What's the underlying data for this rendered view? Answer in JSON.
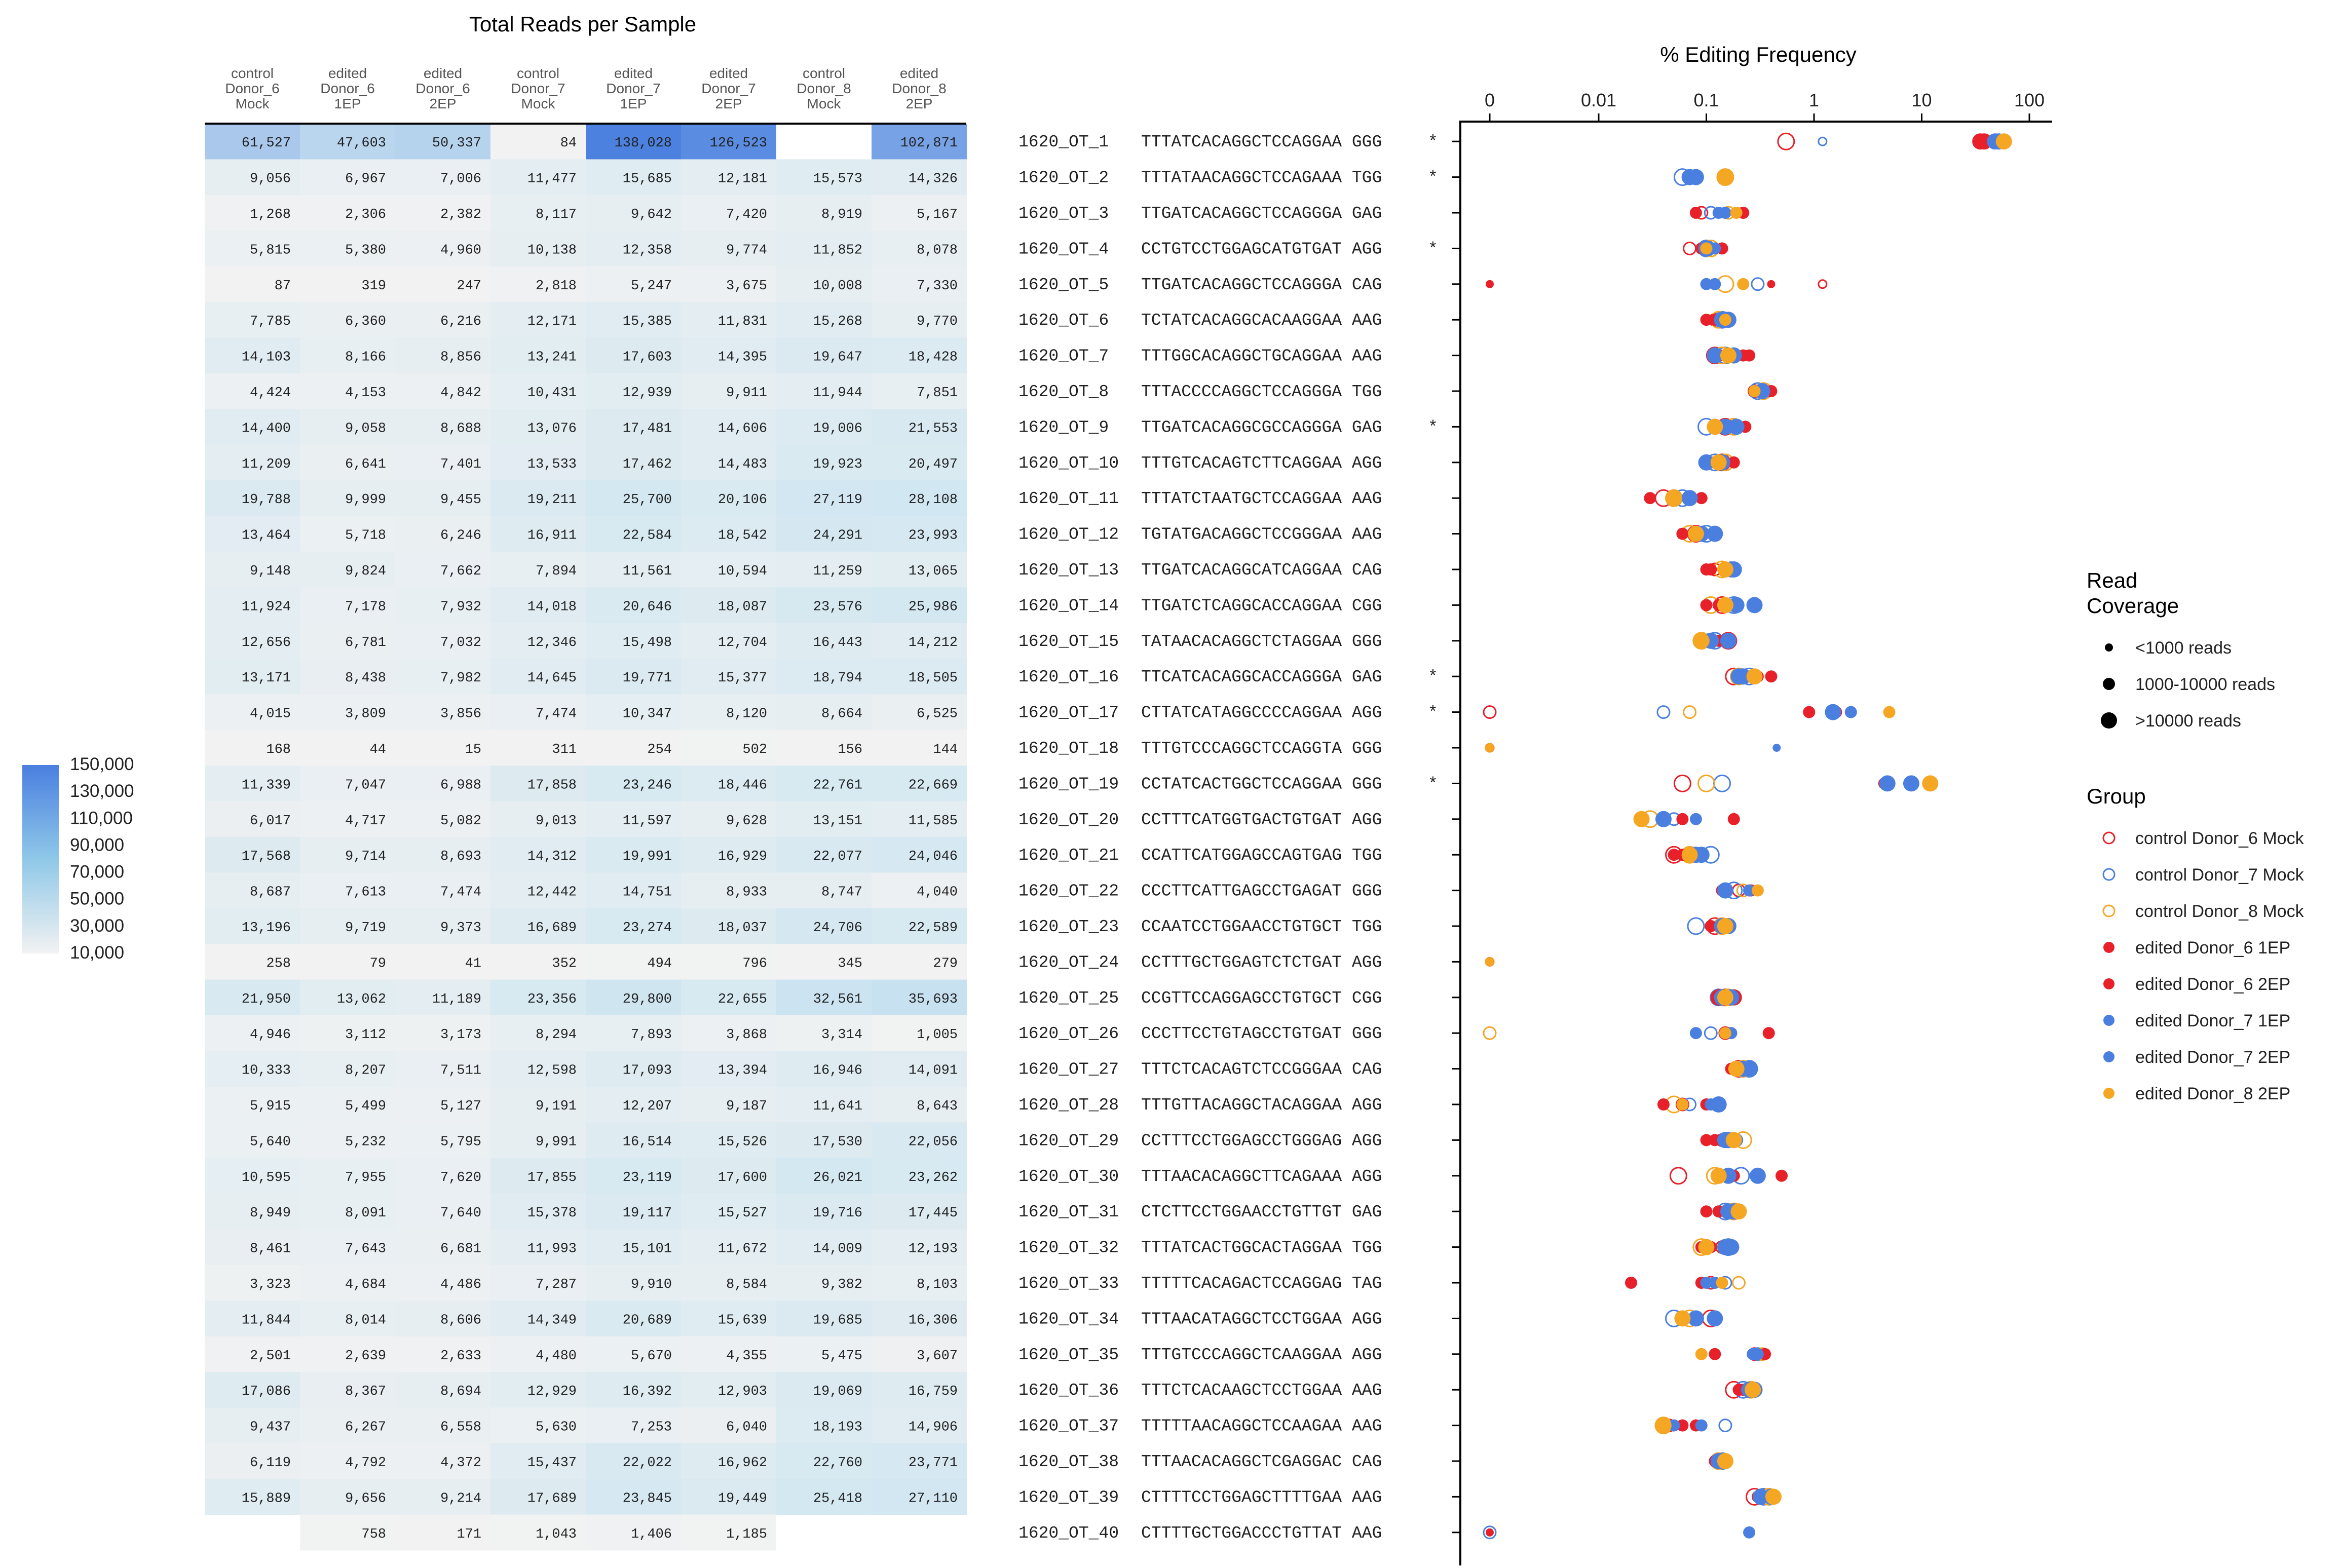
{
  "heatmap": {
    "title": "Total Reads per Sample",
    "columns": [
      [
        "control",
        "Donor_6",
        "Mock"
      ],
      [
        "edited",
        "Donor_6",
        "1EP"
      ],
      [
        "edited",
        "Donor_6",
        "2EP"
      ],
      [
        "control",
        "Donor_7",
        "Mock"
      ],
      [
        "edited",
        "Donor_7",
        "1EP"
      ],
      [
        "edited",
        "Donor_7",
        "2EP"
      ],
      [
        "control",
        "Donor_8",
        "Mock"
      ],
      [
        "edited",
        "Donor_8",
        "2EP"
      ]
    ],
    "colorbar_labels": [
      "150,000",
      "130,000",
      "110,000",
      "90,000",
      "70,000",
      "50,000",
      "30,000",
      "10,000"
    ],
    "colorbar_values": [
      150000,
      130000,
      110000,
      90000,
      70000,
      50000,
      30000,
      10000
    ],
    "colors": {
      "low": "#f2f2f2",
      "mid": "#cfe6f1",
      "high": "#4a7fe0"
    }
  },
  "chart_data": {
    "type": "scatter",
    "title": "% Editing Frequency",
    "x_scale": "log",
    "x_ticks": [
      "0",
      "0.01",
      "0.1",
      "1",
      "10",
      "100"
    ],
    "sites": [
      {
        "name": "1620_OT_1",
        "seq": "TTTATCACAGGCTCCAGGAA GGG",
        "star": "*"
      },
      {
        "name": "1620_OT_2",
        "seq": "TTTATAACAGGCTCCAGAAA TGG",
        "star": "*"
      },
      {
        "name": "1620_OT_3",
        "seq": "TTGATCACAGGCTCCAGGGA GAG",
        "star": ""
      },
      {
        "name": "1620_OT_4",
        "seq": "CCTGTCCTGGAGCATGTGAT AGG",
        "star": "*"
      },
      {
        "name": "1620_OT_5",
        "seq": "TTGATCACAGGCTCCAGGGA CAG",
        "star": ""
      },
      {
        "name": "1620_OT_6",
        "seq": "TCTATCACAGGCACAAGGAA AAG",
        "star": ""
      },
      {
        "name": "1620_OT_7",
        "seq": "TTTGGCACAGGCTGCAGGAA AAG",
        "star": ""
      },
      {
        "name": "1620_OT_8",
        "seq": "TTTACCCCAGGCTCCAGGGA TGG",
        "star": ""
      },
      {
        "name": "1620_OT_9",
        "seq": "TTGATCACAGGCGCCAGGGA GAG",
        "star": "*"
      },
      {
        "name": "1620_OT_10",
        "seq": "TTTGTCACAGTCTTCAGGAA AGG",
        "star": ""
      },
      {
        "name": "1620_OT_11",
        "seq": "TTTATCTAATGCTCCAGGAA AAG",
        "star": ""
      },
      {
        "name": "1620_OT_12",
        "seq": "TGTATGACAGGCTCCGGGAA AAG",
        "star": ""
      },
      {
        "name": "1620_OT_13",
        "seq": "TTGATCACAGGCATCAGGAA CAG",
        "star": ""
      },
      {
        "name": "1620_OT_14",
        "seq": "TTGATCTCAGGCACCAGGAA CGG",
        "star": ""
      },
      {
        "name": "1620_OT_15",
        "seq": "TATAACACAGGCTCTAGGAA GGG",
        "star": ""
      },
      {
        "name": "1620_OT_16",
        "seq": "TTCATCACAGGCACCAGGGA GAG",
        "star": "*"
      },
      {
        "name": "1620_OT_17",
        "seq": "CTTATCATAGGCCCCAGGAA AGG",
        "star": "*"
      },
      {
        "name": "1620_OT_18",
        "seq": "TTTGTCCCAGGCTCCAGGTA GGG",
        "star": ""
      },
      {
        "name": "1620_OT_19",
        "seq": "CCTATCACTGGCTCCAGGAA GGG",
        "star": "*"
      },
      {
        "name": "1620_OT_20",
        "seq": "CCTTTCATGGTGACTGTGAT AGG",
        "star": ""
      },
      {
        "name": "1620_OT_21",
        "seq": "CCATTCATGGAGCCAGTGAG TGG",
        "star": ""
      },
      {
        "name": "1620_OT_22",
        "seq": "CCCTTCATTGAGCCTGAGAT GGG",
        "star": ""
      },
      {
        "name": "1620_OT_23",
        "seq": "CCAATCCTGGAACCTGTGCT TGG",
        "star": ""
      },
      {
        "name": "1620_OT_24",
        "seq": "CCTTTGCTGGAGTCTCTGAT AGG",
        "star": ""
      },
      {
        "name": "1620_OT_25",
        "seq": "CCGTTCCAGGAGCCTGTGCT CGG",
        "star": ""
      },
      {
        "name": "1620_OT_26",
        "seq": "CCCTTCCTGTAGCCTGTGAT GGG",
        "star": ""
      },
      {
        "name": "1620_OT_27",
        "seq": "TTTCTCACAGTCTCCGGGAA CAG",
        "star": ""
      },
      {
        "name": "1620_OT_28",
        "seq": "TTTGTTACAGGCTACAGGAA AGG",
        "star": ""
      },
      {
        "name": "1620_OT_29",
        "seq": "CCTTTCCTGGAGCCTGGGAG AGG",
        "star": ""
      },
      {
        "name": "1620_OT_30",
        "seq": "TTTAACACAGGCTTCAGAAA AGG",
        "star": ""
      },
      {
        "name": "1620_OT_31",
        "seq": "CTCTTCCTGGAACCTGTTGT GAG",
        "star": ""
      },
      {
        "name": "1620_OT_32",
        "seq": "TTTATCACTGGCACTAGGAA TGG",
        "star": ""
      },
      {
        "name": "1620_OT_33",
        "seq": "TTTTTCACAGACTCCAGGAG TAG",
        "star": ""
      },
      {
        "name": "1620_OT_34",
        "seq": "TTTAACATAGGCTCCTGGAA AGG",
        "star": ""
      },
      {
        "name": "1620_OT_35",
        "seq": "TTTGTCCCAGGCTCAAGGAA AGG",
        "star": ""
      },
      {
        "name": "1620_OT_36",
        "seq": "TTTCTCACAAGCTCCTGGAA AAG",
        "star": ""
      },
      {
        "name": "1620_OT_37",
        "seq": "TTTTTAACAGGCTCCAAGAA AAG",
        "star": ""
      },
      {
        "name": "1620_OT_38",
        "seq": "TTTAACACAGGCTCGAGGAC CAG",
        "star": ""
      },
      {
        "name": "1620_OT_39",
        "seq": "CTTTTCCTGGAGCTTTTGAA AAG",
        "star": ""
      },
      {
        "name": "1620_OT_40",
        "seq": "CTTTTGCTGGACCCTGTTAT AAG",
        "star": ""
      }
    ],
    "reads": [
      [
        61527,
        47603,
        50337,
        84,
        138028,
        126523,
        null,
        102871
      ],
      [
        9056,
        6967,
        7006,
        11477,
        15685,
        12181,
        15573,
        14326
      ],
      [
        1268,
        2306,
        2382,
        8117,
        9642,
        7420,
        8919,
        5167
      ],
      [
        5815,
        5380,
        4960,
        10138,
        12358,
        9774,
        11852,
        8078
      ],
      [
        87,
        319,
        247,
        2818,
        5247,
        3675,
        10008,
        7330
      ],
      [
        7785,
        6360,
        6216,
        12171,
        15385,
        11831,
        15268,
        9770
      ],
      [
        14103,
        8166,
        8856,
        13241,
        17603,
        14395,
        19647,
        18428
      ],
      [
        4424,
        4153,
        4842,
        10431,
        12939,
        9911,
        11944,
        7851
      ],
      [
        14400,
        9058,
        8688,
        13076,
        17481,
        14606,
        19006,
        21553
      ],
      [
        11209,
        6641,
        7401,
        13533,
        17462,
        14483,
        19923,
        20497
      ],
      [
        19788,
        9999,
        9455,
        19211,
        25700,
        20106,
        27119,
        28108
      ],
      [
        13464,
        5718,
        6246,
        16911,
        22584,
        18542,
        24291,
        23993
      ],
      [
        9148,
        9824,
        7662,
        7894,
        11561,
        10594,
        11259,
        13065
      ],
      [
        11924,
        7178,
        7932,
        14018,
        20646,
        18087,
        23576,
        25986
      ],
      [
        12656,
        6781,
        7032,
        12346,
        15498,
        12704,
        16443,
        14212
      ],
      [
        13171,
        8438,
        7982,
        14645,
        19771,
        15377,
        18794,
        18505
      ],
      [
        4015,
        3809,
        3856,
        7474,
        10347,
        8120,
        8664,
        6525
      ],
      [
        168,
        44,
        15,
        311,
        254,
        502,
        156,
        144
      ],
      [
        11339,
        7047,
        6988,
        17858,
        23246,
        18446,
        22761,
        22669
      ],
      [
        6017,
        4717,
        5082,
        9013,
        11597,
        9628,
        13151,
        11585
      ],
      [
        17568,
        9714,
        8693,
        14312,
        19991,
        16929,
        22077,
        24046
      ],
      [
        8687,
        7613,
        7474,
        12442,
        14751,
        8933,
        8747,
        4040
      ],
      [
        13196,
        9719,
        9373,
        16689,
        23274,
        18037,
        24706,
        22589
      ],
      [
        258,
        79,
        41,
        352,
        494,
        796,
        345,
        279
      ],
      [
        21950,
        13062,
        11189,
        23356,
        29800,
        22655,
        32561,
        35693
      ],
      [
        4946,
        3112,
        3173,
        8294,
        7893,
        3868,
        3314,
        1005
      ],
      [
        10333,
        8207,
        7511,
        12598,
        17093,
        13394,
        16946,
        14091
      ],
      [
        5915,
        5499,
        5127,
        9191,
        12207,
        9187,
        11641,
        8643
      ],
      [
        5640,
        5232,
        5795,
        9991,
        16514,
        15526,
        17530,
        22056
      ],
      [
        10595,
        7955,
        7620,
        17855,
        23119,
        17600,
        26021,
        23262
      ],
      [
        8949,
        8091,
        7640,
        15378,
        19117,
        15527,
        19716,
        17445
      ],
      [
        8461,
        7643,
        6681,
        11993,
        15101,
        11672,
        14009,
        12193
      ],
      [
        3323,
        4684,
        4486,
        7287,
        9910,
        8584,
        9382,
        8103
      ],
      [
        11844,
        8014,
        8606,
        14349,
        20689,
        15639,
        19685,
        16306
      ],
      [
        2501,
        2639,
        2633,
        4480,
        5670,
        4355,
        5475,
        3607
      ],
      [
        17086,
        8367,
        8694,
        12929,
        16392,
        12903,
        19069,
        16759
      ],
      [
        9437,
        6267,
        6558,
        5630,
        7253,
        6040,
        18193,
        14906
      ],
      [
        6119,
        4792,
        4372,
        15437,
        22022,
        16962,
        22760,
        23771
      ],
      [
        15889,
        9656,
        9214,
        17689,
        23845,
        19449,
        25418,
        27110
      ],
      [
        null,
        758,
        171,
        1043,
        1406,
        1185,
        null,
        null
      ]
    ],
    "groups": [
      {
        "name": "control Donor_6 Mock",
        "color": "#e8202a",
        "filled": false
      },
      {
        "name": "control Donor_7 Mock",
        "color": "#4a7fe0",
        "filled": false
      },
      {
        "name": "control Donor_8 Mock",
        "color": "#f5a623",
        "filled": false
      },
      {
        "name": "edited Donor_6 1EP",
        "color": "#e8202a",
        "filled": true
      },
      {
        "name": "edited Donor_6 2EP",
        "color": "#e8202a",
        "filled": true
      },
      {
        "name": "edited Donor_7 1EP",
        "color": "#4a7fe0",
        "filled": true
      },
      {
        "name": "edited Donor_7 2EP",
        "color": "#4a7fe0",
        "filled": true
      },
      {
        "name": "edited Donor_8 2EP",
        "color": "#f5a623",
        "filled": true
      }
    ],
    "group_to_column": [
      0,
      3,
      6,
      1,
      2,
      4,
      5,
      7
    ],
    "values": [
      [
        0.55,
        1.2,
        null,
        35,
        38,
        48,
        52,
        58
      ],
      [
        0.07,
        0.06,
        0.15,
        0.07,
        0.08,
        0.07,
        0.08,
        0.15
      ],
      [
        0.09,
        0.11,
        0.16,
        0.08,
        0.22,
        0.13,
        0.15,
        0.19
      ],
      [
        0.07,
        0.1,
        0.11,
        0.09,
        0.14,
        0.1,
        0.12,
        0.1
      ],
      [
        1.2,
        0.3,
        0.15,
        0.001,
        0.4,
        0.1,
        0.12,
        0.22
      ],
      [
        0.12,
        0.14,
        0.13,
        0.1,
        0.12,
        0.14,
        0.16,
        0.15
      ],
      [
        0.12,
        0.15,
        0.14,
        0.22,
        0.25,
        0.12,
        0.18,
        0.16
      ],
      [
        0.28,
        0.3,
        0.34,
        0.4,
        0.35,
        0.33,
        0.3,
        0.28
      ],
      [
        0.15,
        0.1,
        0.18,
        0.2,
        0.23,
        0.15,
        0.19,
        0.12
      ],
      [
        0.14,
        0.12,
        0.15,
        0.11,
        0.18,
        0.1,
        0.14,
        0.13
      ],
      [
        0.04,
        0.06,
        0.05,
        0.03,
        0.09,
        0.05,
        0.07,
        0.05
      ],
      [
        0.08,
        0.1,
        0.07,
        0.06,
        0.12,
        0.09,
        0.12,
        0.08
      ],
      [
        0.12,
        0.16,
        0.14,
        0.1,
        0.11,
        0.18,
        0.17,
        0.15
      ],
      [
        0.14,
        0.18,
        0.11,
        0.1,
        0.13,
        0.19,
        0.28,
        0.15
      ],
      [
        0.16,
        0.12,
        0.09,
        0.13,
        0.17,
        0.11,
        0.16,
        0.09
      ],
      [
        0.18,
        0.25,
        0.2,
        0.3,
        0.4,
        0.22,
        0.2,
        0.28
      ],
      [
        0.001,
        0.04,
        0.07,
        0.9,
        1.6,
        1.5,
        2.2,
        5.0
      ],
      [
        0.001,
        null,
        0.001,
        0.001,
        0.001,
        null,
        0.45,
        0.001
      ],
      [
        0.06,
        0.14,
        0.1,
        5.0,
        4.5,
        4.8,
        8.0,
        12.0
      ],
      [
        0.04,
        0.05,
        0.03,
        0.18,
        0.06,
        0.04,
        0.08,
        0.025
      ],
      [
        0.05,
        0.11,
        0.07,
        0.06,
        0.05,
        0.09,
        0.08,
        0.07
      ],
      [
        0.2,
        0.18,
        0.22,
        0.14,
        0.26,
        0.15,
        0.25,
        0.3
      ],
      [
        0.12,
        0.08,
        0.14,
        0.15,
        0.11,
        0.16,
        0.14,
        0.15
      ],
      [
        0.001,
        null,
        0.001,
        0.001,
        0.001,
        null,
        null,
        0.001
      ],
      [
        0.15,
        0.13,
        0.16,
        0.18,
        0.13,
        0.17,
        0.14,
        0.15
      ],
      [
        0.15,
        0.11,
        0.001,
        0.38,
        0.16,
        0.08,
        0.17,
        0.15
      ],
      [
        0.2,
        0.25,
        0.22,
        0.17,
        0.2,
        0.25,
        0.22,
        0.19
      ],
      [
        0.06,
        0.07,
        0.05,
        0.04,
        0.1,
        0.13,
        0.11,
        0.06
      ],
      [
        0.14,
        0.19,
        0.22,
        0.1,
        0.12,
        0.16,
        0.15,
        0.18
      ],
      [
        0.055,
        0.21,
        0.12,
        0.5,
        0.18,
        0.3,
        0.16,
        0.13
      ],
      [
        0.16,
        0.15,
        0.18,
        0.1,
        0.13,
        0.18,
        0.16,
        0.2
      ],
      [
        0.14,
        0.16,
        0.09,
        0.09,
        0.11,
        0.15,
        0.17,
        0.1
      ],
      [
        0.11,
        0.15,
        0.2,
        0.02,
        0.09,
        0.1,
        0.12,
        0.14
      ],
      [
        0.11,
        0.05,
        0.07,
        0.06,
        0.12,
        0.08,
        0.12,
        0.06
      ],
      [
        0.28,
        0.3,
        0.33,
        0.12,
        0.35,
        0.27,
        0.3,
        0.09
      ],
      [
        0.18,
        0.22,
        0.26,
        0.2,
        0.22,
        0.28,
        0.25,
        0.27
      ],
      [
        0.045,
        0.15,
        0.04,
        0.08,
        0.06,
        0.09,
        0.05,
        0.04
      ],
      [
        0.15,
        0.14,
        0.13,
        0.12,
        0.15,
        0.14,
        0.13,
        0.15
      ],
      [
        0.28,
        0.34,
        0.38,
        0.3,
        0.36,
        0.32,
        0.4,
        0.42
      ],
      [
        null,
        0.001,
        null,
        null,
        0.001,
        null,
        0.25,
        null
      ]
    ]
  },
  "legend": {
    "coverage_title": [
      "Read",
      "Coverage"
    ],
    "coverage_items": [
      "<1000 reads",
      "1000-10000 reads",
      ">10000 reads"
    ],
    "group_title": "Group"
  }
}
